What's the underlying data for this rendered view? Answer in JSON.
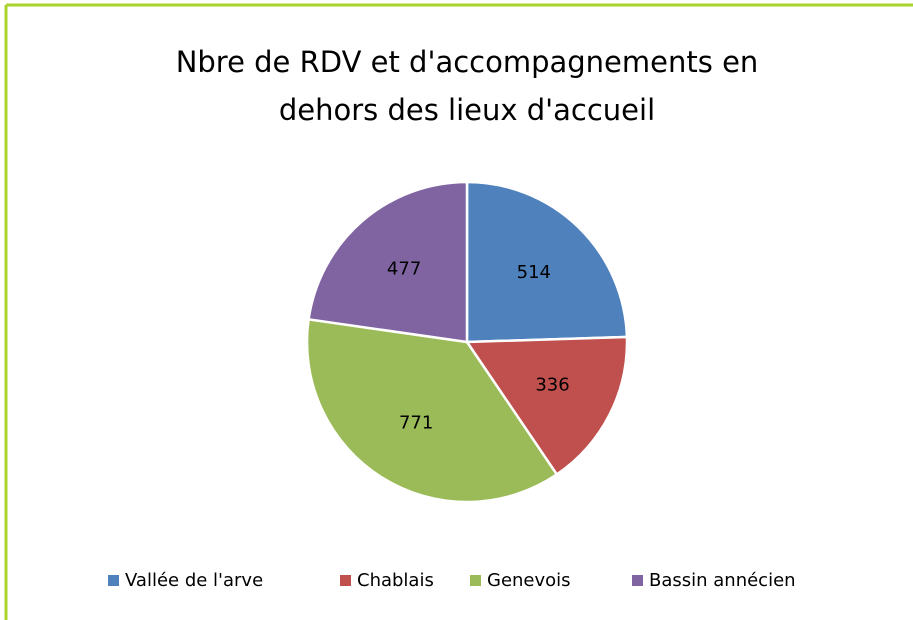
{
  "chart_data": {
    "type": "pie",
    "title": "Nbre de RDV et d'accompagnements en dehors des lieux d'accueil",
    "categories": [
      "Vallée de l'arve",
      "Chablais",
      "Genevois",
      "Bassin annécien"
    ],
    "values": [
      514,
      336,
      771,
      477
    ],
    "colors": [
      "#4f81bd",
      "#c0504d",
      "#9bbb59",
      "#8064a2"
    ],
    "legend": "bottom"
  }
}
